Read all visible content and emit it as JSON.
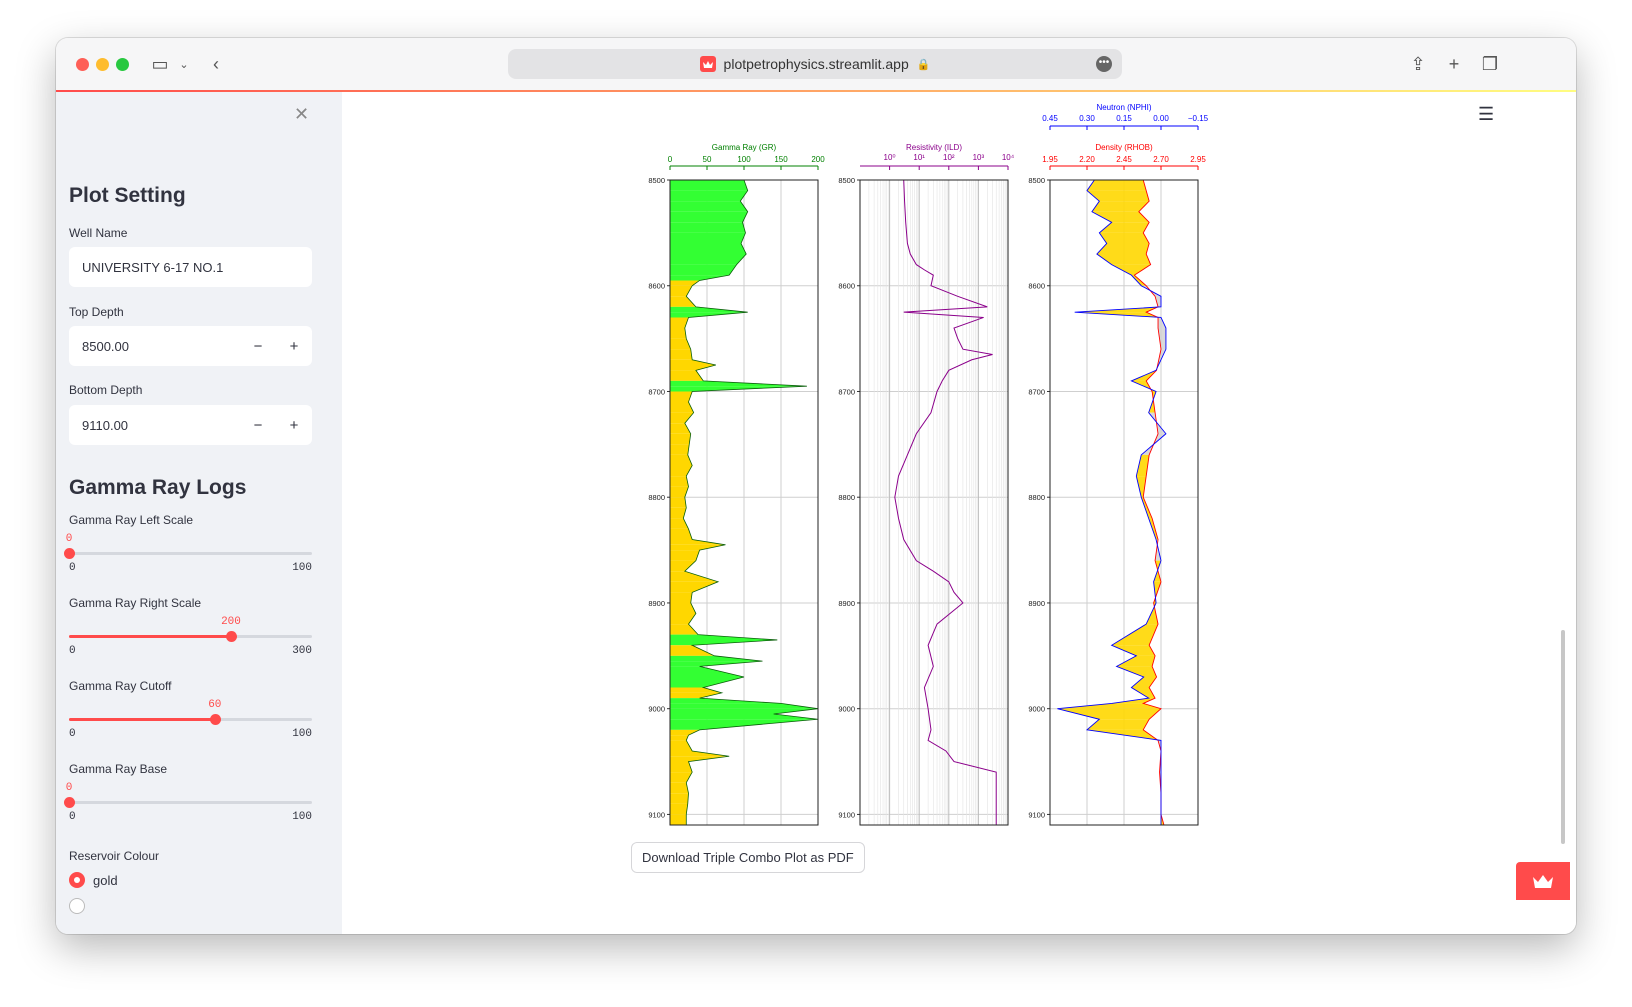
{
  "browser": {
    "url": "plotpetrophysics.streamlit.app"
  },
  "sidebar": {
    "plot_setting_title": "Plot Setting",
    "well_name": {
      "label": "Well Name",
      "value": "UNIVERSITY 6-17 NO.1"
    },
    "top_depth": {
      "label": "Top Depth",
      "value": "8500.00",
      "minus": "−",
      "plus": "+"
    },
    "bottom_depth": {
      "label": "Bottom Depth",
      "value": "9110.00",
      "minus": "−",
      "plus": "+"
    },
    "gamma_title": "Gamma Ray Logs",
    "sliders": [
      {
        "label": "Gamma Ray Left Scale",
        "value": 0,
        "min": 0,
        "max": 100,
        "value_text": "0",
        "min_text": "0",
        "max_text": "100"
      },
      {
        "label": "Gamma Ray Right Scale",
        "value": 200,
        "min": 0,
        "max": 300,
        "value_text": "200",
        "min_text": "0",
        "max_text": "300"
      },
      {
        "label": "Gamma Ray Cutoff",
        "value": 60,
        "min": 0,
        "max": 100,
        "value_text": "60",
        "min_text": "0",
        "max_text": "100"
      },
      {
        "label": "Gamma Ray Base",
        "value": 0,
        "min": 0,
        "max": 100,
        "value_text": "0",
        "min_text": "0",
        "max_text": "100"
      }
    ],
    "reservoir_colour": {
      "label": "Reservoir Colour",
      "selected": "gold"
    }
  },
  "main": {
    "download_button": "Download Triple Combo Plot as PDF"
  },
  "chart_data": [
    {
      "type": "line",
      "title": "Gamma Ray (GR)",
      "xlim": [
        0,
        200
      ],
      "xticks": [
        "0",
        "50",
        "100",
        "150",
        "200"
      ],
      "ylim": [
        9110,
        8500
      ],
      "yticks": [
        "8500",
        "8600",
        "8700",
        "8800",
        "8900",
        "9000",
        "9100"
      ],
      "cutoff": 60,
      "fill_colors": {
        "shale": "#33ff33",
        "reservoir": "#ffd700"
      },
      "series": [
        {
          "depth": [
            8500,
            8510,
            8520,
            8530,
            8540,
            8550,
            8560,
            8570,
            8580,
            8590,
            8595,
            8600,
            8610,
            8620,
            8625,
            8630,
            8640,
            8650,
            8660,
            8670,
            8675,
            8680,
            8690,
            8695,
            8700,
            8710,
            8720,
            8730,
            8740,
            8750,
            8760,
            8770,
            8780,
            8790,
            8800,
            8810,
            8820,
            8830,
            8840,
            8845,
            8850,
            8860,
            8870,
            8880,
            8890,
            8900,
            8910,
            8920,
            8930,
            8935,
            8940,
            8950,
            8955,
            8960,
            8970,
            8980,
            8985,
            8990,
            8995,
            9000,
            9005,
            9010,
            9015,
            9020,
            9025,
            9030,
            9040,
            9045,
            9050,
            9060,
            9070,
            9080,
            9090,
            9100,
            9110
          ],
          "values": [
            100,
            105,
            95,
            105,
            98,
            102,
            96,
            103,
            90,
            80,
            40,
            30,
            22,
            35,
            105,
            25,
            20,
            22,
            28,
            30,
            62,
            35,
            45,
            185,
            30,
            25,
            32,
            20,
            28,
            26,
            24,
            30,
            22,
            25,
            20,
            22,
            18,
            25,
            30,
            75,
            40,
            35,
            20,
            65,
            30,
            28,
            35,
            25,
            38,
            145,
            30,
            60,
            125,
            40,
            100,
            45,
            70,
            40,
            150,
            200,
            140,
            200,
            120,
            40,
            25,
            22,
            30,
            80,
            25,
            30,
            22,
            25,
            24,
            22,
            22
          ]
        }
      ]
    },
    {
      "type": "line",
      "title": "Resistivity (ILD)",
      "scale": "log",
      "xlim": [
        0.1,
        10000
      ],
      "xticks": [
        "10⁰",
        "10¹",
        "10²",
        "10³",
        "10⁴"
      ],
      "ylim": [
        9110,
        8500
      ],
      "yticks": [
        "8500",
        "8600",
        "8700",
        "8800",
        "8900",
        "9000",
        "9100"
      ],
      "series": [
        {
          "depth": [
            8500,
            8520,
            8540,
            8560,
            8570,
            8580,
            8585,
            8590,
            8600,
            8610,
            8620,
            8625,
            8630,
            8640,
            8650,
            8660,
            8665,
            8670,
            8680,
            8690,
            8700,
            8720,
            8740,
            8760,
            8780,
            8800,
            8820,
            8840,
            8860,
            8870,
            8880,
            8890,
            8900,
            8920,
            8940,
            8960,
            8980,
            9000,
            9020,
            9030,
            9040,
            9050,
            9060,
            9080,
            9100,
            9110
          ],
          "values": [
            3,
            3.2,
            3.5,
            4,
            5,
            8,
            15,
            30,
            25,
            200,
            2000,
            3,
            1500,
            150,
            200,
            300,
            3000,
            600,
            100,
            60,
            40,
            25,
            8,
            4,
            2,
            1.5,
            2,
            3,
            8,
            30,
            100,
            150,
            300,
            40,
            20,
            30,
            15,
            20,
            25,
            20,
            80,
            150,
            4000,
            4000,
            4000,
            4000
          ]
        }
      ]
    },
    {
      "type": "line",
      "title": "Neutron (NPHI) / Density (RHOB)",
      "ylim": [
        9110,
        8500
      ],
      "yticks": [
        "8500",
        "8600",
        "8700",
        "8800",
        "8900",
        "9000",
        "9100"
      ],
      "series": [
        {
          "name": "Neutron (NPHI)",
          "color": "#0000ff",
          "xlim": [
            0.45,
            -0.15
          ],
          "xticks": [
            "0.45",
            "0.30",
            "0.15",
            "0.00",
            "−0.15"
          ],
          "depth": [
            8500,
            8510,
            8520,
            8530,
            8540,
            8550,
            8560,
            8570,
            8580,
            8590,
            8600,
            8610,
            8620,
            8625,
            8630,
            8640,
            8660,
            8680,
            8690,
            8700,
            8720,
            8740,
            8760,
            8780,
            8800,
            8820,
            8840,
            8860,
            8880,
            8900,
            8920,
            8940,
            8950,
            8960,
            8970,
            8980,
            8990,
            8995,
            9000,
            9010,
            9020,
            9030,
            9040,
            9060,
            9080,
            9100,
            9110
          ],
          "values": [
            0.27,
            0.3,
            0.25,
            0.28,
            0.2,
            0.25,
            0.22,
            0.26,
            0.2,
            0.12,
            0.08,
            0.0,
            0.0,
            0.35,
            0.0,
            -0.02,
            -0.02,
            0.02,
            0.12,
            0.02,
            0.05,
            -0.02,
            0.08,
            0.1,
            0.08,
            0.05,
            0.02,
            0.0,
            0.03,
            0.02,
            0.06,
            0.2,
            0.1,
            0.18,
            0.07,
            0.12,
            0.05,
            0.2,
            0.42,
            0.25,
            0.3,
            0.0,
            0.0,
            0.0,
            0.0,
            0.0,
            0.0
          ]
        },
        {
          "name": "Density (RHOB)",
          "color": "#ff0000",
          "xlim": [
            1.95,
            2.95
          ],
          "xticks": [
            "1.95",
            "2.20",
            "2.45",
            "2.70",
            "2.95"
          ],
          "depth": [
            8500,
            8510,
            8520,
            8530,
            8540,
            8550,
            8560,
            8570,
            8580,
            8590,
            8600,
            8610,
            8620,
            8625,
            8630,
            8640,
            8660,
            8680,
            8690,
            8700,
            8720,
            8740,
            8760,
            8780,
            8800,
            8820,
            8840,
            8860,
            8880,
            8900,
            8920,
            8940,
            8950,
            8960,
            8970,
            8980,
            8990,
            8995,
            9000,
            9010,
            9020,
            9030,
            9040,
            9060,
            9080,
            9100,
            9110
          ],
          "values": [
            2.58,
            2.6,
            2.62,
            2.55,
            2.62,
            2.58,
            2.62,
            2.6,
            2.63,
            2.52,
            2.6,
            2.66,
            2.68,
            2.6,
            2.68,
            2.68,
            2.7,
            2.67,
            2.6,
            2.64,
            2.66,
            2.68,
            2.62,
            2.6,
            2.58,
            2.64,
            2.68,
            2.66,
            2.7,
            2.65,
            2.68,
            2.62,
            2.66,
            2.64,
            2.67,
            2.62,
            2.66,
            2.58,
            2.7,
            2.62,
            2.58,
            2.68,
            2.7,
            2.69,
            2.7,
            2.7,
            2.72
          ]
        }
      ]
    }
  ]
}
